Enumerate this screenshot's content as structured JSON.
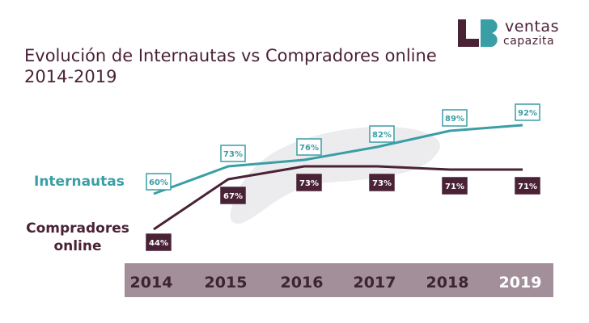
{
  "header": {
    "title": "Evolución de Internautas vs Compradores online 2014-2019"
  },
  "logo": {
    "line1": "ventas",
    "line2": "capazita",
    "mark": "LB",
    "colors": {
      "dark": "#4a2236",
      "teal": "#3a9ea6"
    }
  },
  "chart_data": {
    "type": "line",
    "title": "Evolución de Internautas vs Compradores online 2014-2019",
    "categories": [
      "2014",
      "2015",
      "2016",
      "2017",
      "2018",
      "2019"
    ],
    "series": [
      {
        "name": "Internautas",
        "values": [
          60,
          73,
          76,
          82,
          89,
          92
        ],
        "labels": [
          "60%",
          "73%",
          "76%",
          "82%",
          "89%",
          "92%"
        ],
        "color": "#3a9ea6"
      },
      {
        "name": "Compradores online",
        "values": [
          44,
          67,
          73,
          73,
          71,
          71
        ],
        "labels": [
          "44%",
          "67%",
          "73%",
          "73%",
          "71%",
          "71%"
        ],
        "color": "#4a2236"
      }
    ],
    "ylim": [
      40,
      95
    ],
    "grid": false,
    "legend": "left",
    "axis_bar_color": "#a28f9a"
  }
}
